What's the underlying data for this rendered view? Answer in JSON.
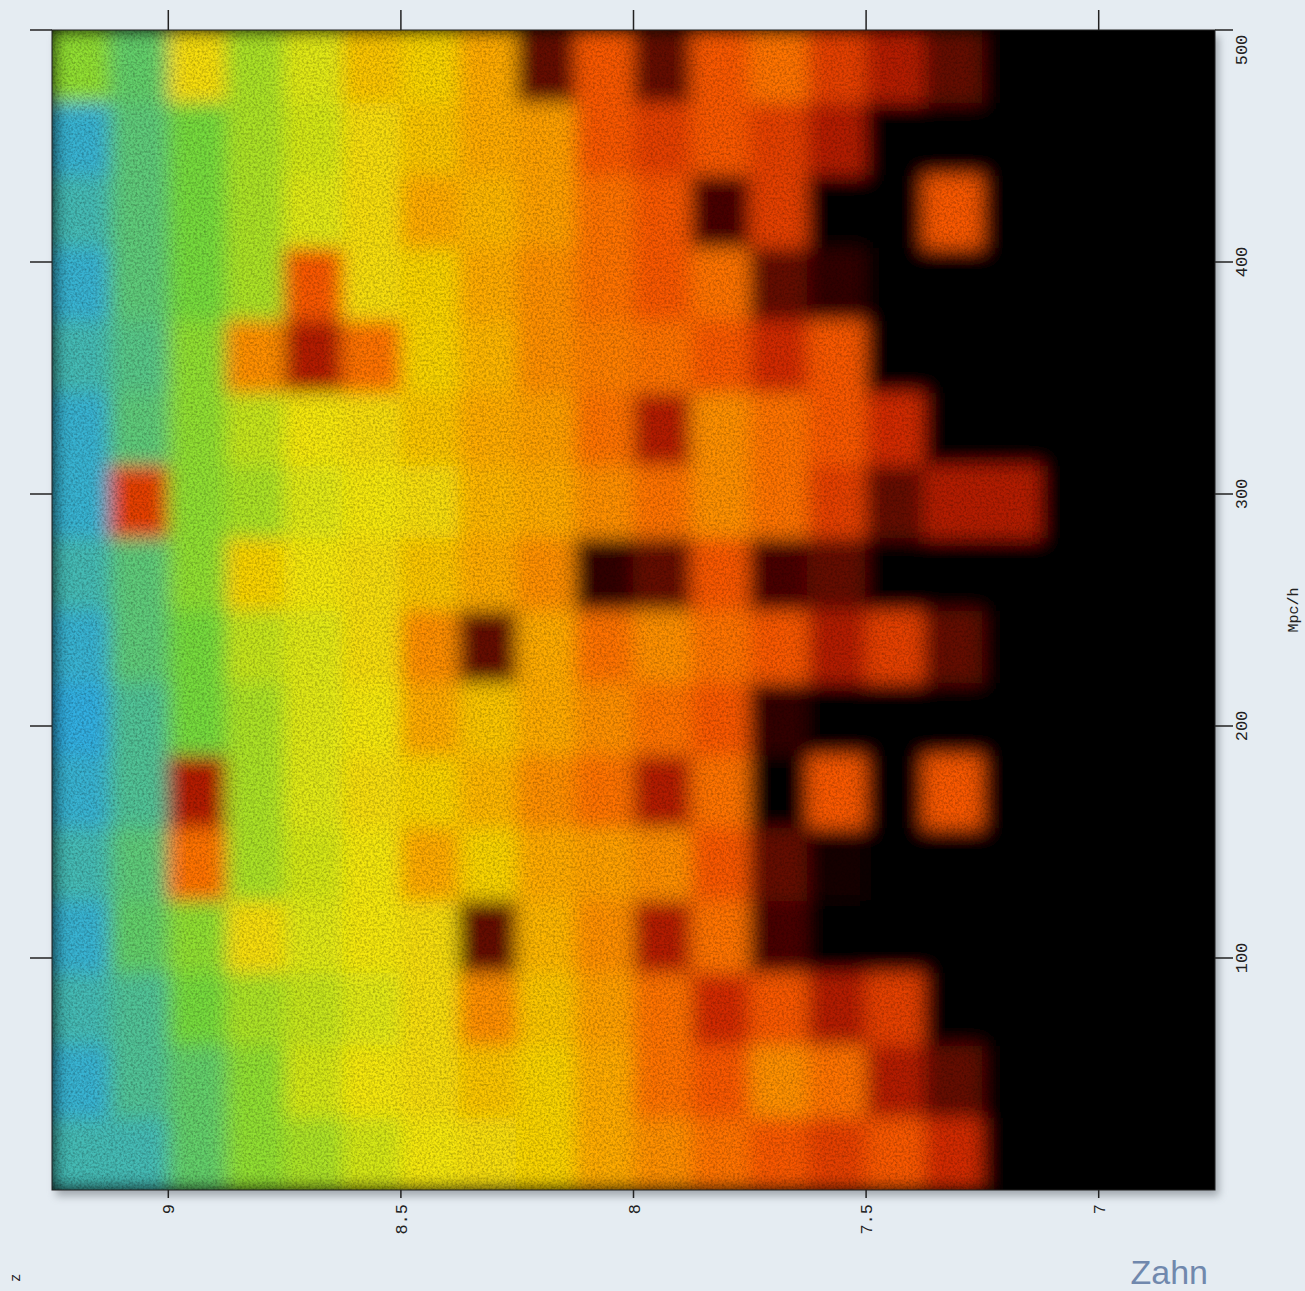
{
  "chart_data": {
    "type": "heatmap",
    "x_label": "z",
    "y_label": "Mpc/h",
    "credit": "Zahn",
    "xlim": [
      9.25,
      6.75
    ],
    "ylim": [
      0,
      500
    ],
    "xticks": [
      9,
      8.5,
      8,
      7.5,
      7
    ],
    "yticks": [
      100,
      200,
      300,
      400,
      500
    ],
    "tick_labels": true,
    "x": [
      9.1875,
      9.0625,
      8.9375,
      8.8125,
      8.6875,
      8.5625,
      8.4375,
      8.3125,
      8.1875,
      8.0625,
      7.9375,
      7.8125,
      7.6875,
      7.5625,
      7.4375,
      7.3125,
      7.1875,
      7.0625,
      6.9375,
      6.8125
    ],
    "y": [
      15.625,
      46.875,
      78.125,
      109.375,
      140.625,
      171.875,
      203.125,
      234.375,
      265.625,
      296.875,
      328.125,
      359.375,
      390.625,
      421.875,
      453.125,
      484.375
    ],
    "values": [
      [
        0.9,
        0.9,
        0.85,
        0.8,
        0.78,
        0.75,
        0.72,
        0.7,
        0.68,
        0.6,
        0.55,
        0.5,
        0.45,
        0.4,
        0.45,
        0.35,
        0,
        0,
        0,
        0
      ],
      [
        0.92,
        0.88,
        0.85,
        0.8,
        0.75,
        0.72,
        0.7,
        0.65,
        0.68,
        0.6,
        0.5,
        0.45,
        0.55,
        0.5,
        0.3,
        0.2,
        0,
        0,
        0,
        0
      ],
      [
        0.9,
        0.88,
        0.82,
        0.78,
        0.76,
        0.74,
        0.7,
        0.55,
        0.65,
        0.58,
        0.5,
        0.35,
        0.45,
        0.3,
        0.4,
        0,
        0,
        0,
        0,
        0
      ],
      [
        0.92,
        0.85,
        0.8,
        0.7,
        0.74,
        0.72,
        0.7,
        0.2,
        0.62,
        0.55,
        0.3,
        0.5,
        0.15,
        0,
        0,
        0,
        0,
        0,
        0,
        0
      ],
      [
        0.9,
        0.86,
        0.5,
        0.78,
        0.75,
        0.72,
        0.6,
        0.68,
        0.6,
        0.58,
        0.55,
        0.45,
        0.2,
        0.05,
        0,
        0,
        0,
        0,
        0,
        0
      ],
      [
        0.92,
        0.88,
        0.3,
        0.78,
        0.74,
        0.7,
        0.68,
        0.62,
        0.55,
        0.5,
        0.3,
        0.5,
        0,
        0.45,
        0,
        0.45,
        0,
        0,
        0,
        0
      ],
      [
        0.93,
        0.88,
        0.82,
        0.78,
        0.74,
        0.72,
        0.6,
        0.65,
        0.6,
        0.55,
        0.5,
        0.45,
        0.1,
        0,
        0,
        0,
        0,
        0,
        0,
        0
      ],
      [
        0.92,
        0.86,
        0.82,
        0.76,
        0.74,
        0.7,
        0.55,
        0.2,
        0.6,
        0.5,
        0.55,
        0.5,
        0.45,
        0.3,
        0.4,
        0.2,
        0,
        0,
        0,
        0
      ],
      [
        0.9,
        0.86,
        0.8,
        0.68,
        0.72,
        0.7,
        0.65,
        0.6,
        0.55,
        0.1,
        0.2,
        0.45,
        0.15,
        0.2,
        0,
        0,
        0,
        0,
        0,
        0
      ],
      [
        0.92,
        0.4,
        0.8,
        0.78,
        0.74,
        0.72,
        0.7,
        0.62,
        0.6,
        0.55,
        0.5,
        0.55,
        0.5,
        0.4,
        0.2,
        0.3,
        0.3,
        0,
        0,
        0
      ],
      [
        0.92,
        0.86,
        0.8,
        0.76,
        0.72,
        0.7,
        0.65,
        0.6,
        0.58,
        0.5,
        0.3,
        0.55,
        0.5,
        0.45,
        0.35,
        0,
        0,
        0,
        0,
        0
      ],
      [
        0.9,
        0.87,
        0.8,
        0.55,
        0.3,
        0.5,
        0.68,
        0.62,
        0.55,
        0.52,
        0.5,
        0.45,
        0.35,
        0.45,
        0,
        0,
        0,
        0,
        0,
        0
      ],
      [
        0.92,
        0.86,
        0.82,
        0.78,
        0.45,
        0.7,
        0.68,
        0.6,
        0.55,
        0.5,
        0.45,
        0.5,
        0.2,
        0.1,
        0,
        0,
        0,
        0,
        0,
        0
      ],
      [
        0.9,
        0.86,
        0.82,
        0.78,
        0.74,
        0.7,
        0.6,
        0.62,
        0.58,
        0.5,
        0.45,
        0.15,
        0.4,
        0,
        0,
        0.45,
        0,
        0,
        0,
        0
      ],
      [
        0.92,
        0.86,
        0.82,
        0.78,
        0.75,
        0.7,
        0.65,
        0.6,
        0.58,
        0.45,
        0.4,
        0.45,
        0.4,
        0.3,
        0,
        0,
        0,
        0,
        0,
        0
      ],
      [
        0.8,
        0.85,
        0.7,
        0.78,
        0.74,
        0.65,
        0.68,
        0.6,
        0.2,
        0.45,
        0.2,
        0.45,
        0.5,
        0.4,
        0.3,
        0.2,
        0,
        0,
        0,
        0
      ]
    ]
  }
}
